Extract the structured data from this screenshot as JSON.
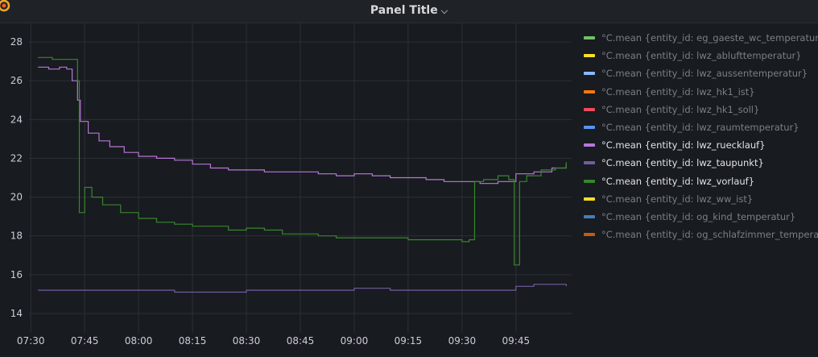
{
  "header": {
    "title": "Panel Title",
    "chevron_icon": "chevron-down-icon",
    "logo_icon": "grafana-logo-icon"
  },
  "colors": {
    "background": "#181b1f",
    "grid": "#2c3036"
  },
  "legend": [
    {
      "label": "°C.mean {entity_id: eg_gaeste_wc_temperatur}",
      "color": "#73bf69",
      "visible": false
    },
    {
      "label": "°C.mean {entity_id: lwz_ablufttemperatur}",
      "color": "#fade2a",
      "visible": false
    },
    {
      "label": "°C.mean {entity_id: lwz_aussentemperatur}",
      "color": "#8ab8ff",
      "visible": false
    },
    {
      "label": "°C.mean {entity_id: lwz_hk1_ist}",
      "color": "#ff780a",
      "visible": false
    },
    {
      "label": "°C.mean {entity_id: lwz_hk1_soll}",
      "color": "#f2495c",
      "visible": false
    },
    {
      "label": "°C.mean {entity_id: lwz_raumtemperatur}",
      "color": "#5794f2",
      "visible": false
    },
    {
      "label": "°C.mean {entity_id: lwz_ruecklauf}",
      "color": "#b877d9",
      "visible": true
    },
    {
      "label": "°C.mean {entity_id: lwz_taupunkt}",
      "color": "#705da0",
      "visible": true
    },
    {
      "label": "°C.mean {entity_id: lwz_vorlauf}",
      "color": "#37872d",
      "visible": true
    },
    {
      "label": "°C.mean {entity_id: lwz_ww_ist}",
      "color": "#fade2a",
      "visible": false
    },
    {
      "label": "°C.mean {entity_id: og_kind_temperatur}",
      "color": "#447ebc",
      "visible": false
    },
    {
      "label": "°C.mean {entity_id: og_schlafzimmer_temperatur}",
      "color": "#c15c17",
      "visible": false
    }
  ],
  "chart_data": {
    "type": "line",
    "x_unit": "minutes of clock time",
    "x_ticks": [
      {
        "x": 450,
        "label": "07:30"
      },
      {
        "x": 465,
        "label": "07:45"
      },
      {
        "x": 480,
        "label": "08:00"
      },
      {
        "x": 495,
        "label": "08:15"
      },
      {
        "x": 510,
        "label": "08:30"
      },
      {
        "x": 525,
        "label": "08:45"
      },
      {
        "x": 540,
        "label": "09:00"
      },
      {
        "x": 555,
        "label": "09:15"
      },
      {
        "x": 570,
        "label": "09:30"
      },
      {
        "x": 585,
        "label": "09:45"
      }
    ],
    "xlim": [
      449.5,
      600.5
    ],
    "ylim": [
      13,
      29
    ],
    "y_ticks": [
      14,
      16,
      18,
      20,
      22,
      24,
      26,
      28
    ],
    "grid": true,
    "legend_position": "right",
    "series": [
      {
        "name": "°C.mean {entity_id: lwz_ruecklauf}",
        "color": "#b877d9",
        "points": [
          [
            452,
            26.7
          ],
          [
            455,
            26.6
          ],
          [
            458,
            26.7
          ],
          [
            460,
            26.6
          ],
          [
            461.5,
            26.0
          ],
          [
            463,
            25.0
          ],
          [
            463.8,
            23.9
          ],
          [
            466,
            23.3
          ],
          [
            469,
            22.9
          ],
          [
            472,
            22.6
          ],
          [
            476,
            22.3
          ],
          [
            480,
            22.1
          ],
          [
            485,
            22.0
          ],
          [
            490,
            21.9
          ],
          [
            495,
            21.7
          ],
          [
            500,
            21.5
          ],
          [
            505,
            21.4
          ],
          [
            510,
            21.4
          ],
          [
            515,
            21.3
          ],
          [
            520,
            21.3
          ],
          [
            525,
            21.3
          ],
          [
            530,
            21.2
          ],
          [
            535,
            21.1
          ],
          [
            540,
            21.2
          ],
          [
            545,
            21.1
          ],
          [
            550,
            21.0
          ],
          [
            555,
            21.0
          ],
          [
            560,
            20.9
          ],
          [
            565,
            20.8
          ],
          [
            570,
            20.8
          ],
          [
            575,
            20.7
          ],
          [
            580,
            20.8
          ],
          [
            585,
            21.2
          ],
          [
            590,
            21.3
          ],
          [
            595,
            21.5
          ],
          [
            599,
            21.7
          ]
        ]
      },
      {
        "name": "°C.mean {entity_id: lwz_taupunkt}",
        "color": "#705da0",
        "points": [
          [
            452,
            15.2
          ],
          [
            460,
            15.2
          ],
          [
            470,
            15.2
          ],
          [
            480,
            15.2
          ],
          [
            490,
            15.1
          ],
          [
            500,
            15.1
          ],
          [
            510,
            15.2
          ],
          [
            520,
            15.2
          ],
          [
            530,
            15.2
          ],
          [
            540,
            15.3
          ],
          [
            550,
            15.2
          ],
          [
            560,
            15.2
          ],
          [
            570,
            15.2
          ],
          [
            580,
            15.2
          ],
          [
            585,
            15.4
          ],
          [
            590,
            15.5
          ],
          [
            595,
            15.5
          ],
          [
            599,
            15.4
          ]
        ]
      },
      {
        "name": "°C.mean {entity_id: lwz_vorlauf}",
        "color": "#37872d",
        "points": [
          [
            452,
            27.2
          ],
          [
            456,
            27.1
          ],
          [
            459,
            27.1
          ],
          [
            461,
            27.1
          ],
          [
            463,
            26.0
          ],
          [
            463.5,
            19.2
          ],
          [
            465,
            20.5
          ],
          [
            467,
            20.0
          ],
          [
            470,
            19.6
          ],
          [
            475,
            19.2
          ],
          [
            480,
            18.9
          ],
          [
            485,
            18.7
          ],
          [
            490,
            18.6
          ],
          [
            495,
            18.5
          ],
          [
            500,
            18.5
          ],
          [
            505,
            18.3
          ],
          [
            510,
            18.4
          ],
          [
            515,
            18.3
          ],
          [
            520,
            18.1
          ],
          [
            525,
            18.1
          ],
          [
            530,
            18.0
          ],
          [
            535,
            17.9
          ],
          [
            540,
            17.9
          ],
          [
            545,
            17.9
          ],
          [
            550,
            17.9
          ],
          [
            555,
            17.8
          ],
          [
            560,
            17.8
          ],
          [
            565,
            17.8
          ],
          [
            570,
            17.7
          ],
          [
            572,
            17.8
          ],
          [
            573.5,
            20.8
          ],
          [
            576,
            20.9
          ],
          [
            580,
            21.1
          ],
          [
            583,
            20.9
          ],
          [
            584.5,
            16.5
          ],
          [
            586,
            20.8
          ],
          [
            588,
            21.1
          ],
          [
            592,
            21.4
          ],
          [
            596,
            21.5
          ],
          [
            599,
            21.8
          ]
        ]
      }
    ]
  }
}
